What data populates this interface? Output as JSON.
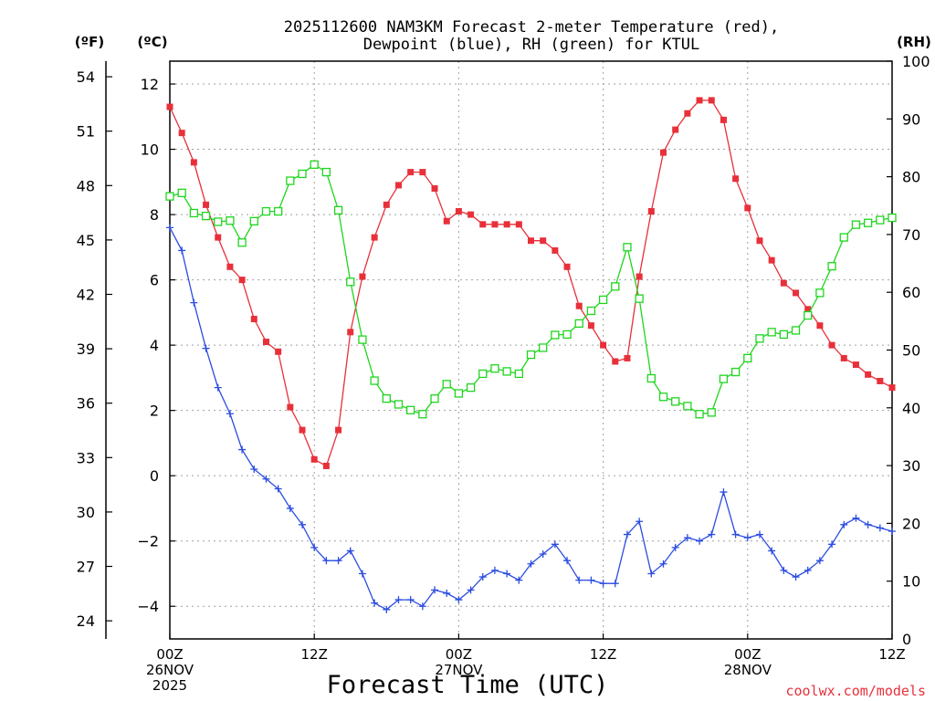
{
  "chart_data": {
    "type": "line",
    "title_line1": "2025112600 NAM3KM Forecast 2-meter Temperature (red),",
    "title_line2": "Dewpoint (blue), RH (green) for KTUL",
    "xlabel": "Forecast Time (UTC)",
    "credit": "coolwx.com/models",
    "units": {
      "fahrenheit": "(ºF)",
      "celsius": "(ºC)",
      "rh": "(RH)"
    },
    "xlim": [
      0,
      60
    ],
    "ylim_c": [
      -5,
      12.7
    ],
    "ylim_rh": [
      0,
      100
    ],
    "y_ticks_c": [
      12,
      10,
      8,
      6,
      4,
      2,
      0,
      -2,
      -4
    ],
    "y_ticks_f": [
      54,
      51,
      48,
      45,
      42,
      39,
      36,
      33,
      30,
      27,
      24
    ],
    "y_ticks_rh": [
      100,
      90,
      80,
      70,
      60,
      50,
      40,
      30,
      20,
      10,
      0
    ],
    "x_ticks": [
      {
        "hour": 0,
        "lines": [
          "00Z",
          "26NOV",
          "2025"
        ]
      },
      {
        "hour": 12,
        "lines": [
          "12Z"
        ]
      },
      {
        "hour": 24,
        "lines": [
          "00Z",
          "27NOV"
        ]
      },
      {
        "hour": 36,
        "lines": [
          "12Z"
        ]
      },
      {
        "hour": 48,
        "lines": [
          "00Z",
          "28NOV"
        ]
      },
      {
        "hour": 60,
        "lines": [
          "12Z"
        ]
      }
    ],
    "grid": true,
    "colors": {
      "temperature": "#e8303a",
      "dewpoint": "#2b4ce0",
      "rh": "#1ed61e",
      "grid": "#a0a0a0"
    },
    "series": [
      {
        "name": "Temperature (°C)",
        "axis": "c",
        "color": "#e8303a",
        "marker": "square-filled",
        "x": [
          0,
          1,
          2,
          3,
          4,
          5,
          6,
          7,
          8,
          9,
          10,
          11,
          12,
          13,
          14,
          15,
          16,
          17,
          18,
          19,
          20,
          21,
          22,
          23,
          24,
          25,
          26,
          27,
          28,
          29,
          30,
          31,
          32,
          33,
          34,
          35,
          36,
          37,
          38,
          39,
          40,
          41,
          42,
          43,
          44,
          45,
          46,
          47,
          48,
          49,
          50,
          51,
          52,
          53,
          54,
          55,
          56,
          57,
          58,
          59,
          60
        ],
        "values": [
          11.3,
          10.5,
          9.6,
          8.3,
          7.3,
          6.4,
          6.0,
          4.8,
          4.1,
          3.8,
          2.1,
          1.4,
          0.5,
          0.3,
          1.4,
          4.4,
          6.1,
          7.3,
          8.3,
          8.9,
          9.3,
          9.3,
          8.8,
          7.8,
          8.1,
          8.0,
          7.7,
          7.7,
          7.7,
          7.7,
          7.2,
          7.2,
          6.9,
          6.4,
          5.2,
          4.6,
          4.0,
          3.5,
          3.6,
          6.1,
          8.1,
          9.9,
          10.6,
          11.1,
          11.5,
          11.5,
          10.9,
          9.1,
          8.2,
          7.2,
          6.6,
          5.9,
          5.6,
          5.1,
          4.6,
          4.0,
          3.6,
          3.4,
          3.1,
          2.9,
          2.7
        ]
      },
      {
        "name": "Dewpoint (°C)",
        "axis": "c",
        "color": "#2b4ce0",
        "marker": "plus",
        "x": [
          0,
          1,
          2,
          3,
          4,
          5,
          6,
          7,
          8,
          9,
          10,
          11,
          12,
          13,
          14,
          15,
          16,
          17,
          18,
          19,
          20,
          21,
          22,
          23,
          24,
          25,
          26,
          27,
          28,
          29,
          30,
          31,
          32,
          33,
          34,
          35,
          36,
          37,
          38,
          39,
          40,
          41,
          42,
          43,
          44,
          45,
          46,
          47,
          48,
          49,
          50,
          51,
          52,
          53,
          54,
          55,
          56,
          57,
          58,
          59,
          60
        ],
        "values": [
          7.6,
          6.9,
          5.3,
          3.9,
          2.7,
          1.9,
          0.8,
          0.2,
          -0.1,
          -0.4,
          -1.0,
          -1.5,
          -2.2,
          -2.6,
          -2.6,
          -2.3,
          -3.0,
          -3.9,
          -4.1,
          -3.8,
          -3.8,
          -4.0,
          -3.5,
          -3.6,
          -3.8,
          -3.5,
          -3.1,
          -2.9,
          -3.0,
          -3.2,
          -2.7,
          -2.4,
          -2.1,
          -2.6,
          -3.2,
          -3.2,
          -3.3,
          -3.3,
          -1.8,
          -1.4,
          -3.0,
          -2.7,
          -2.2,
          -1.9,
          -2.0,
          -1.8,
          -0.5,
          -1.8,
          -1.9,
          -1.8,
          -2.3,
          -2.9,
          -3.1,
          -2.9,
          -2.6,
          -2.1,
          -1.5,
          -1.3,
          -1.5,
          -1.6,
          -1.7
        ]
      },
      {
        "name": "Relative Humidity (%)",
        "axis": "rh",
        "color": "#1ed61e",
        "marker": "square-open",
        "x": [
          0,
          1,
          2,
          3,
          4,
          5,
          6,
          7,
          8,
          9,
          10,
          11,
          12,
          13,
          14,
          15,
          16,
          17,
          18,
          19,
          20,
          21,
          22,
          23,
          24,
          25,
          26,
          27,
          28,
          29,
          30,
          31,
          32,
          33,
          34,
          35,
          36,
          37,
          38,
          39,
          40,
          41,
          42,
          43,
          44,
          45,
          46,
          47,
          48,
          49,
          50,
          51,
          52,
          53,
          54,
          55,
          56,
          57,
          58,
          59,
          60
        ],
        "values": [
          76.6,
          77.2,
          73.7,
          73.2,
          72.2,
          72.4,
          68.6,
          72.3,
          74.0,
          74.0,
          79.3,
          80.5,
          82.1,
          80.8,
          74.2,
          61.8,
          51.8,
          44.7,
          41.6,
          40.6,
          39.6,
          38.9,
          41.6,
          44.1,
          42.5,
          43.5,
          45.9,
          46.8,
          46.3,
          45.9,
          49.2,
          50.4,
          52.6,
          52.7,
          54.6,
          56.8,
          58.7,
          61.0,
          67.8,
          58.9,
          45.1,
          41.9,
          41.1,
          40.3,
          38.9,
          39.2,
          45.0,
          46.2,
          48.6,
          52.0,
          53.1,
          52.7,
          53.4,
          56.0,
          59.9,
          64.5,
          69.5,
          71.7,
          72.0,
          72.5,
          72.9
        ]
      }
    ]
  }
}
